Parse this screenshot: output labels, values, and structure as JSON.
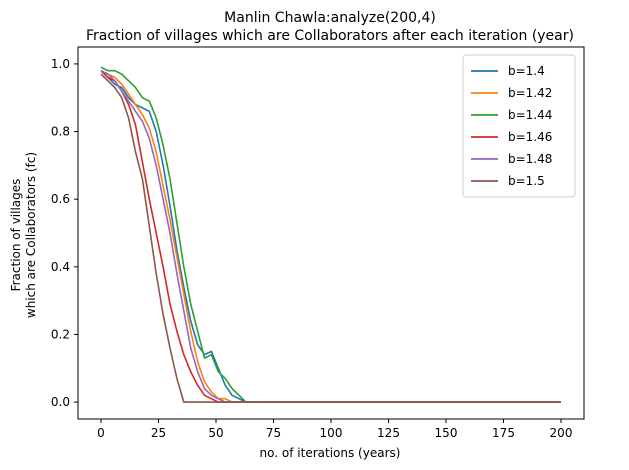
{
  "chart_data": {
    "type": "line",
    "title_line1": "Manlin Chawla:analyze(200,4)",
    "title_line2": "Fraction of villages which are Collaborators after each iteration (year)",
    "xlabel": "no. of iterations (years)",
    "ylabel_line1": "Fraction of villages",
    "ylabel_line2": "which are Collaborators (fc)",
    "xlim": [
      -10,
      210
    ],
    "ylim": [
      -0.05,
      1.05
    ],
    "xticks": [
      0,
      25,
      50,
      75,
      100,
      125,
      150,
      175,
      200
    ],
    "xtick_labels": [
      "0",
      "25",
      "50",
      "75",
      "100",
      "125",
      "150",
      "175",
      "200"
    ],
    "yticks": [
      0.0,
      0.2,
      0.4,
      0.6,
      0.8,
      1.0
    ],
    "ytick_labels": [
      "0.0",
      "0.2",
      "0.4",
      "0.6",
      "0.8",
      "1.0"
    ],
    "legend_position": "top-right",
    "series": [
      {
        "name": "b=1.4",
        "color": "#1f77b4",
        "x": [
          0,
          3,
          6,
          9,
          12,
          15,
          18,
          21,
          24,
          27,
          30,
          33,
          36,
          39,
          42,
          45,
          48,
          51,
          54,
          57,
          60,
          63,
          200
        ],
        "y": [
          0.98,
          0.96,
          0.94,
          0.93,
          0.9,
          0.88,
          0.87,
          0.86,
          0.8,
          0.7,
          0.58,
          0.45,
          0.34,
          0.24,
          0.17,
          0.14,
          0.15,
          0.1,
          0.05,
          0.02,
          0.01,
          0.0,
          0.0
        ]
      },
      {
        "name": "b=1.42",
        "color": "#ff7f0e",
        "x": [
          0,
          3,
          6,
          9,
          12,
          15,
          18,
          21,
          24,
          27,
          30,
          33,
          36,
          39,
          42,
          45,
          48,
          51,
          54,
          57,
          200
        ],
        "y": [
          0.98,
          0.97,
          0.96,
          0.94,
          0.91,
          0.88,
          0.85,
          0.81,
          0.74,
          0.64,
          0.54,
          0.43,
          0.32,
          0.21,
          0.12,
          0.06,
          0.03,
          0.01,
          0.01,
          0.0,
          0.0
        ]
      },
      {
        "name": "b=1.44",
        "color": "#2ca02c",
        "x": [
          0,
          3,
          6,
          9,
          12,
          15,
          18,
          21,
          24,
          27,
          30,
          33,
          36,
          39,
          42,
          45,
          48,
          51,
          54,
          57,
          60,
          63,
          200
        ],
        "y": [
          0.99,
          0.98,
          0.98,
          0.97,
          0.95,
          0.93,
          0.9,
          0.89,
          0.84,
          0.76,
          0.66,
          0.53,
          0.4,
          0.29,
          0.21,
          0.13,
          0.14,
          0.09,
          0.07,
          0.04,
          0.02,
          0.0,
          0.0
        ]
      },
      {
        "name": "b=1.46",
        "color": "#d62728",
        "x": [
          0,
          3,
          6,
          9,
          12,
          15,
          18,
          21,
          24,
          27,
          30,
          33,
          36,
          39,
          42,
          45,
          48,
          51,
          200
        ],
        "y": [
          0.98,
          0.96,
          0.95,
          0.92,
          0.88,
          0.82,
          0.71,
          0.6,
          0.5,
          0.4,
          0.29,
          0.21,
          0.14,
          0.09,
          0.05,
          0.02,
          0.01,
          0.0,
          0.0
        ]
      },
      {
        "name": "b=1.48",
        "color": "#9467bd",
        "x": [
          0,
          3,
          6,
          9,
          12,
          15,
          18,
          21,
          24,
          27,
          30,
          33,
          36,
          39,
          42,
          45,
          48,
          51,
          54,
          200
        ],
        "y": [
          0.98,
          0.97,
          0.95,
          0.92,
          0.89,
          0.86,
          0.83,
          0.78,
          0.7,
          0.6,
          0.5,
          0.38,
          0.27,
          0.16,
          0.09,
          0.04,
          0.02,
          0.01,
          0.0,
          0.0
        ]
      },
      {
        "name": "b=1.5",
        "color": "#8c564b",
        "x": [
          0,
          3,
          6,
          9,
          12,
          15,
          18,
          21,
          24,
          27,
          30,
          33,
          36,
          39,
          200
        ],
        "y": [
          0.97,
          0.95,
          0.93,
          0.9,
          0.84,
          0.74,
          0.66,
          0.52,
          0.38,
          0.26,
          0.16,
          0.07,
          0.0,
          0.0,
          0.0
        ]
      }
    ]
  }
}
